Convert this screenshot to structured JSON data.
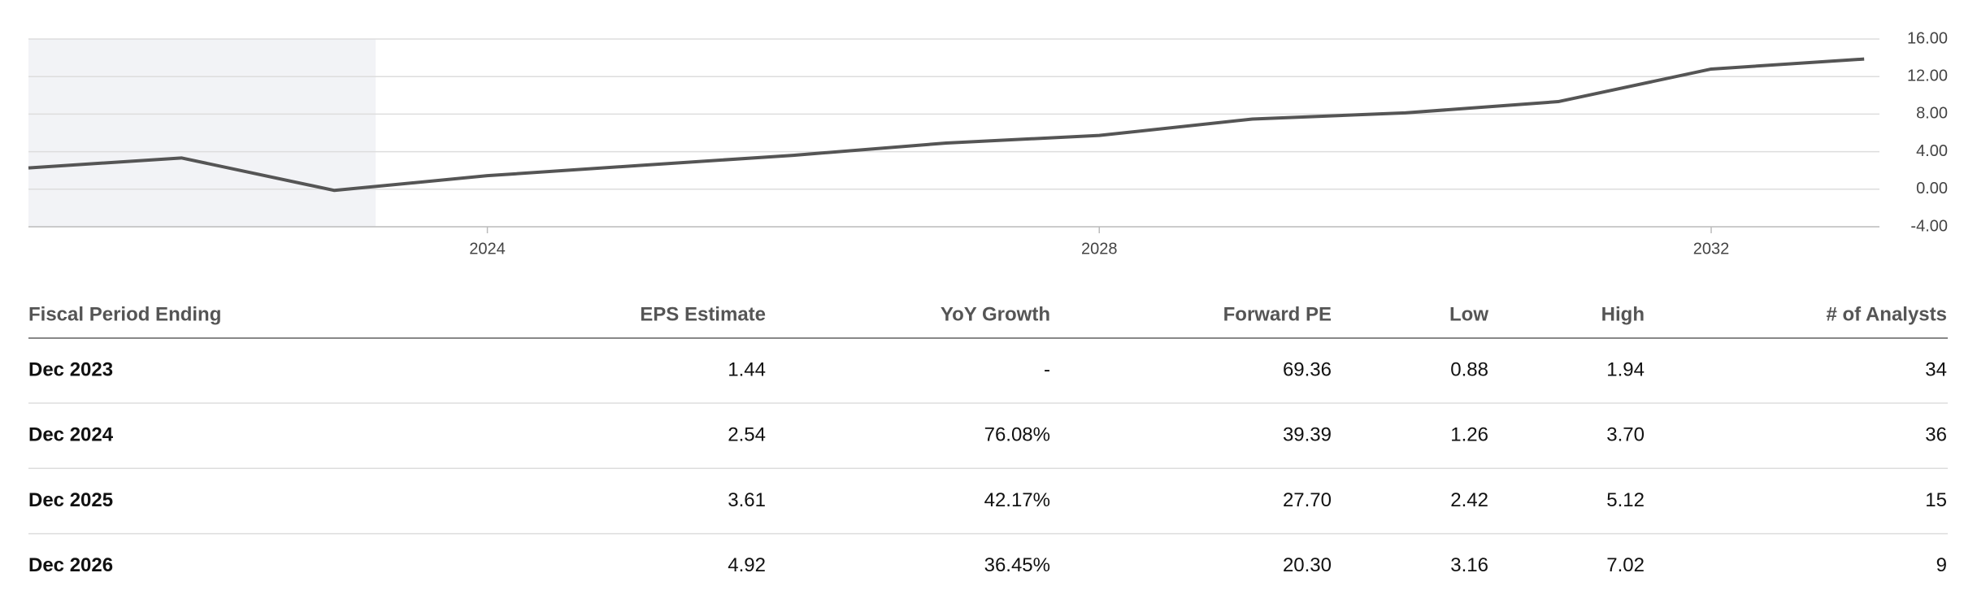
{
  "chart_data": {
    "type": "line",
    "x": [
      2021,
      2022,
      2023,
      2024,
      2025,
      2026,
      2027,
      2028,
      2029,
      2030,
      2031,
      2032,
      2033
    ],
    "values": [
      2.27,
      3.33,
      -0.13,
      1.44,
      2.54,
      3.61,
      4.92,
      5.73,
      7.47,
      8.13,
      9.33,
      12.8,
      13.87
    ],
    "color": "#555555",
    "xlim": [
      2021,
      2033.1
    ],
    "xticks": [
      2024,
      2028,
      2032
    ],
    "ylim": [
      -4,
      16
    ],
    "yticks": [
      {
        "value": -4,
        "label": "-4.00"
      },
      {
        "value": 0,
        "label": "0.00"
      },
      {
        "value": 4,
        "label": "4.00"
      },
      {
        "value": 8,
        "label": "8.00"
      },
      {
        "value": 12,
        "label": "12.00"
      },
      {
        "value": 16,
        "label": "16.00"
      }
    ],
    "shaded_xlim": [
      2021,
      2023.27
    ],
    "grid": true
  },
  "table": {
    "headers": [
      "Fiscal Period Ending",
      "EPS Estimate",
      "YoY Growth",
      "Forward PE",
      "Low",
      "High",
      "# of Analysts"
    ],
    "rows": [
      [
        "Dec 2023",
        "1.44",
        "-",
        "69.36",
        "0.88",
        "1.94",
        "34"
      ],
      [
        "Dec 2024",
        "2.54",
        "76.08%",
        "39.39",
        "1.26",
        "3.70",
        "36"
      ],
      [
        "Dec 2025",
        "3.61",
        "42.17%",
        "27.70",
        "2.42",
        "5.12",
        "15"
      ],
      [
        "Dec 2026",
        "4.92",
        "36.45%",
        "20.30",
        "3.16",
        "7.02",
        "9"
      ]
    ]
  }
}
